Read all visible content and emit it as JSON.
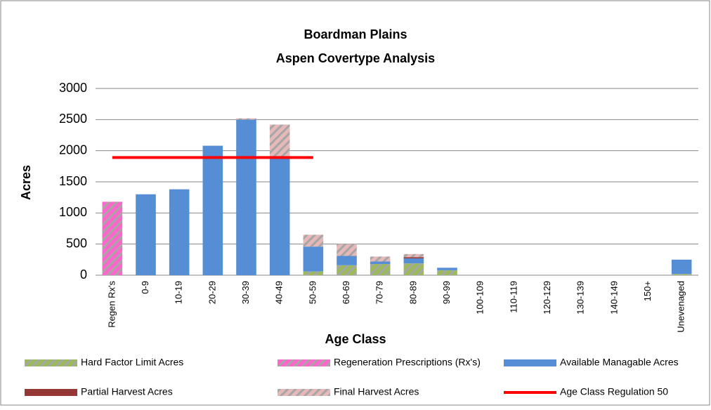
{
  "chart_data": {
    "type": "bar",
    "stacked": true,
    "title": [
      "Boardman Plains",
      "Aspen Covertype Analysis"
    ],
    "x_label": "Age Class",
    "y_label": "Acres",
    "categories": [
      "Regen Rx's",
      "0-9",
      "10-19",
      "20-29",
      "30-39",
      "40-49",
      "50-59",
      "60-69",
      "70-79",
      "80-89",
      "90-99",
      "100-109",
      "110-119",
      "120-129",
      "130-139",
      "140-149",
      "150+",
      "Unevenaged"
    ],
    "series": [
      {
        "name": "Hard Factor Limit Acres",
        "color": "#9bbb59",
        "pattern": true,
        "values": [
          0,
          0,
          0,
          0,
          0,
          0,
          60,
          160,
          180,
          190,
          80,
          0,
          0,
          0,
          0,
          0,
          0,
          20
        ]
      },
      {
        "name": "Regeneration Prescriptions (Rx's)",
        "color": "#ff66cc",
        "pattern": true,
        "values": [
          1180,
          0,
          0,
          0,
          0,
          0,
          0,
          0,
          0,
          0,
          0,
          0,
          0,
          0,
          0,
          0,
          0,
          0
        ]
      },
      {
        "name": "Available Managable Acres",
        "color": "#558ed5",
        "pattern": false,
        "values": [
          0,
          1300,
          1380,
          2080,
          2500,
          1900,
          400,
          150,
          40,
          80,
          40,
          0,
          0,
          0,
          0,
          0,
          0,
          230
        ]
      },
      {
        "name": "Partial Harvest Acres",
        "color": "#953735",
        "pattern": false,
        "values": [
          0,
          0,
          0,
          0,
          0,
          0,
          0,
          0,
          0,
          20,
          0,
          0,
          0,
          0,
          0,
          0,
          0,
          0
        ]
      },
      {
        "name": "Final Harvest Acres",
        "color": "#e6b9b8",
        "pattern": true,
        "values": [
          0,
          0,
          0,
          0,
          20,
          520,
          190,
          190,
          80,
          50,
          0,
          0,
          0,
          0,
          0,
          0,
          0,
          0
        ]
      },
      {
        "name": "Age Class Regulation 50",
        "color": "#ff0000",
        "type": "line",
        "values": [
          1890,
          1890,
          1890,
          1890,
          1890,
          1890,
          1890,
          null,
          null,
          null,
          null,
          null,
          null,
          null,
          null,
          null,
          null,
          null
        ]
      }
    ],
    "ylim": [
      0,
      3000
    ],
    "yticks": [
      0,
      500,
      1000,
      1500,
      2000,
      2500,
      3000
    ],
    "grid": true,
    "legend": "bottom"
  }
}
